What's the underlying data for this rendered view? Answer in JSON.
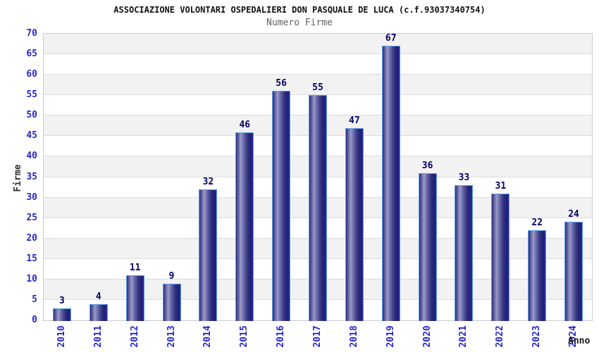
{
  "chart_data": {
    "type": "bar",
    "title": "ASSOCIAZIONE VOLONTARI OSPEDALIERI DON PASQUALE DE LUCA (c.f.93037340754)",
    "subtitle": "Numero Firme",
    "ylabel": "Firme",
    "xlabel": "Anno",
    "categories": [
      "2010",
      "2011",
      "2012",
      "2013",
      "2014",
      "2015",
      "2016",
      "2017",
      "2018",
      "2019",
      "2020",
      "2021",
      "2022",
      "2023",
      "2024"
    ],
    "values": [
      3,
      4,
      11,
      9,
      32,
      46,
      56,
      55,
      47,
      67,
      36,
      33,
      31,
      22,
      24
    ],
    "ylim": [
      0,
      70
    ],
    "ytick_step": 5,
    "grid": true,
    "legend": false,
    "colors": {
      "tick_label": "#2626cc",
      "value_label": "#000066",
      "title": "#111111",
      "subtitle": "#606060",
      "axis_label": "#303030",
      "xaxis_title": "#1a1a1a",
      "band_light": "#ffffff",
      "band_dark": "#f2f2f2",
      "gridline": "#dcdcdc",
      "plot_border": "#cccccc",
      "bar_border": "#5b9fe6",
      "bar_gradient": [
        "#2e2e7c",
        "#9a9ac8",
        "#5c5ca2",
        "#30307c",
        "#1f1f78",
        "#2a2aa0"
      ]
    }
  }
}
